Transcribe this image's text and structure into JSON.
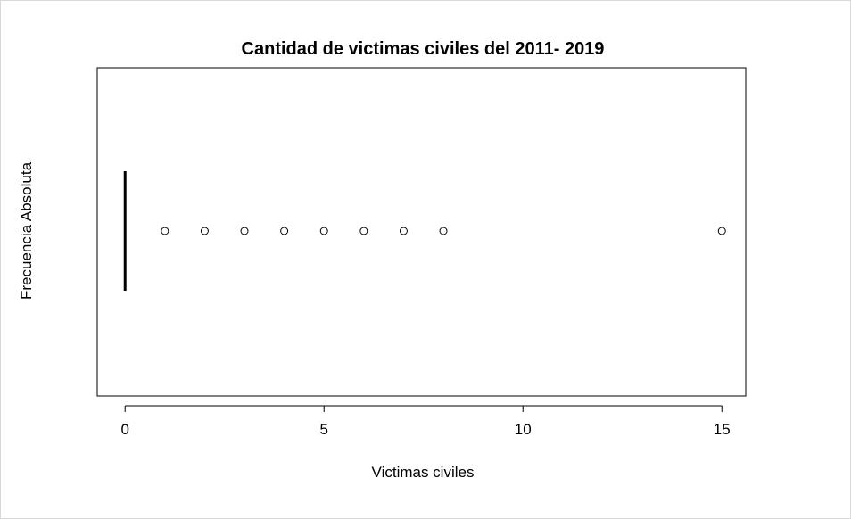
{
  "chart_data": {
    "type": "boxplot",
    "orientation": "horizontal",
    "title": "Cantidad de victimas civiles del 2011- 2019",
    "xlabel": "Victimas civiles",
    "ylabel": "Frecuencia Absoluta",
    "xlim": [
      -0.7,
      15.6
    ],
    "xticks": [
      0,
      5,
      10,
      15
    ],
    "xtick_labels": [
      "0",
      "5",
      "10",
      "15"
    ],
    "box": {
      "min": 0,
      "q1": 0,
      "median": 0,
      "q3": 0,
      "max": 0
    },
    "outliers": [
      1,
      2,
      3,
      4,
      5,
      6,
      7,
      8,
      15
    ],
    "grid": false,
    "legend": "none"
  },
  "colors": {
    "line": "#000000",
    "background": "#ffffff"
  }
}
